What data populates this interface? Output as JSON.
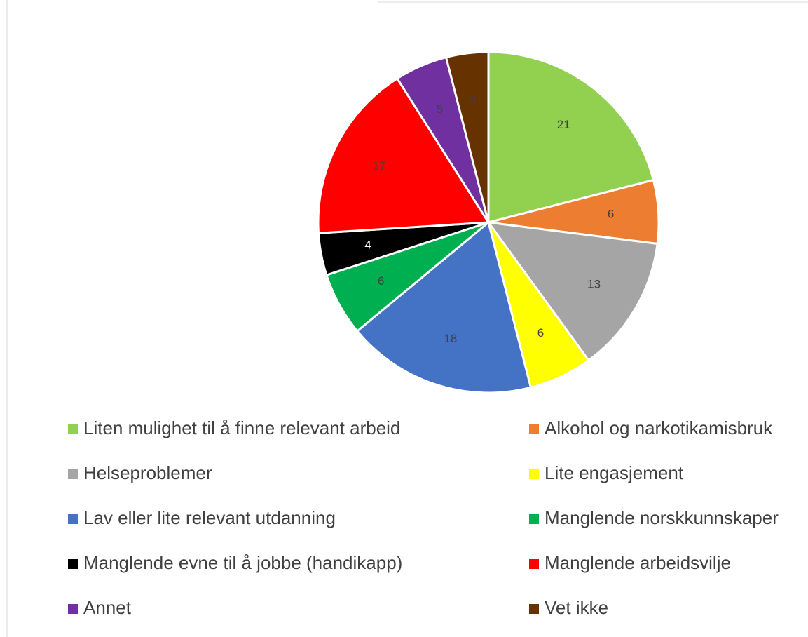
{
  "chart_data": {
    "type": "pie",
    "categories": [
      "Liten mulighet til å finne relevant arbeid",
      "Alkohol og narkotikamisbruk",
      "Helseproblemer",
      "Lite engasjement",
      "Lav eller lite relevant utdanning",
      "Manglende norskkunnskaper",
      "Manglende evne til å jobbe (handikapp)",
      "Manglende arbeidsvilje",
      "Annet",
      "Vet ikke"
    ],
    "values": [
      21,
      6,
      13,
      6,
      18,
      6,
      4,
      17,
      5,
      4
    ],
    "colors": [
      "#92d050",
      "#ed7d31",
      "#a5a5a5",
      "#ffff00",
      "#4472c4",
      "#00b050",
      "#000000",
      "#ff0000",
      "#7030a0",
      "#663300"
    ],
    "legend": "bottom"
  }
}
